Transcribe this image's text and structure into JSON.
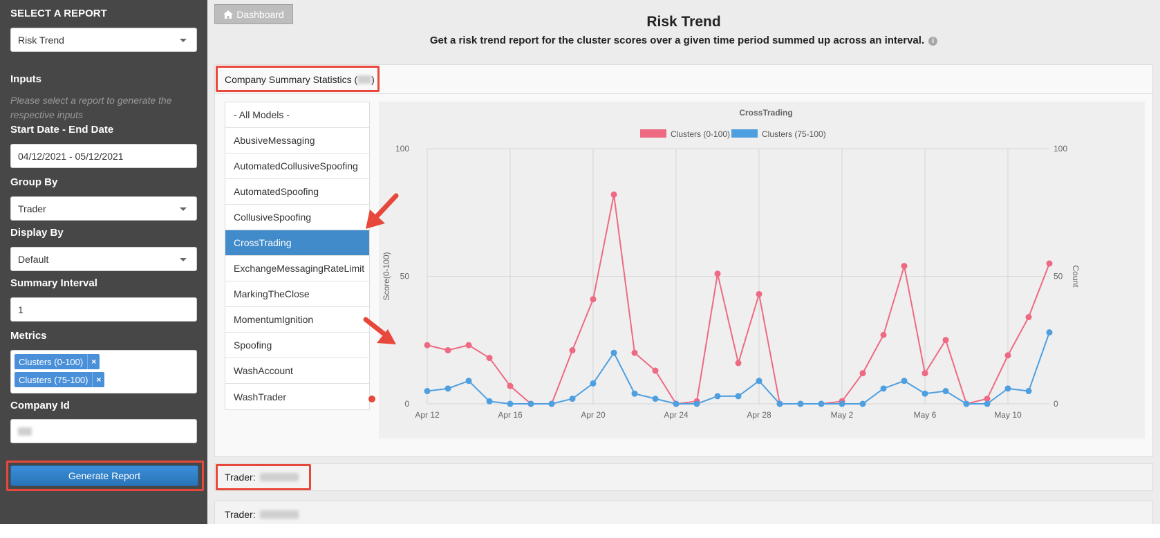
{
  "sidebar": {
    "select_report_label": "SELECT A REPORT",
    "report_value": "Risk Trend",
    "inputs_label": "Inputs",
    "inputs_hint": "Please select a report to generate the respective inputs",
    "date_label": "Start Date - End Date",
    "date_value": "04/12/2021 - 05/12/2021",
    "group_by_label": "Group By",
    "group_by_value": "Trader",
    "display_by_label": "Display By",
    "display_by_value": "Default",
    "summary_interval_label": "Summary Interval",
    "summary_interval_value": "1",
    "metrics_label": "Metrics",
    "metrics": [
      "Clusters (0-100)",
      "Clusters (75-100)"
    ],
    "company_id_label": "Company Id",
    "generate_label": "Generate Report"
  },
  "main": {
    "dashboard_label": "Dashboard",
    "title": "Risk Trend",
    "subtitle": "Get a risk trend report for the cluster scores over a given time period summed up across an interval.",
    "summary_panel_label": "Company Summary Statistics (",
    "summary_panel_close": ")",
    "models": [
      "- All Models -",
      "AbusiveMessaging",
      "AutomatedCollusiveSpoofing",
      "AutomatedSpoofing",
      "CollusiveSpoofing",
      "CrossTrading",
      "ExchangeMessagingRateLimit",
      "MarkingTheClose",
      "MomentumIgnition",
      "Spoofing",
      "WashAccount",
      "WashTrader"
    ],
    "active_model": "CrossTrading",
    "trader_label_1": "Trader:",
    "trader_label_2": "Trader:"
  },
  "colors": {
    "sidebar_bg": "#474747",
    "accent_blue": "#428bca",
    "series_pink": "#ee6a82",
    "series_blue": "#4e9fe0",
    "highlight_red": "#e8483c"
  },
  "chart_data": {
    "type": "line",
    "title": "CrossTrading",
    "ylabel": "Score(0-100)",
    "y2label": "Count",
    "ylim": [
      0,
      100
    ],
    "yticks": [
      0,
      50,
      100
    ],
    "legend_position": "top-center",
    "grid": true,
    "x": [
      "Apr 12",
      "Apr 13",
      "Apr 14",
      "Apr 15",
      "Apr 16",
      "Apr 17",
      "Apr 18",
      "Apr 19",
      "Apr 20",
      "Apr 21",
      "Apr 22",
      "Apr 23",
      "Apr 24",
      "Apr 25",
      "Apr 26",
      "Apr 27",
      "Apr 28",
      "Apr 29",
      "Apr 30",
      "May 1",
      "May 2",
      "May 3",
      "May 4",
      "May 5",
      "May 6",
      "May 7",
      "May 8",
      "May 9",
      "May 10",
      "May 11",
      "May 12"
    ],
    "xtick_labels": [
      "Apr 12",
      "Apr 16",
      "Apr 20",
      "Apr 24",
      "Apr 28",
      "May 2",
      "May 6",
      "May 10"
    ],
    "xtick_indices": [
      0,
      4,
      8,
      12,
      16,
      20,
      24,
      28
    ],
    "series": [
      {
        "name": "Clusters (0-100)",
        "color": "#ee6a82",
        "values": [
          23,
          21,
          23,
          18,
          7,
          0,
          0,
          21,
          41,
          82,
          20,
          13,
          0,
          1,
          51,
          16,
          43,
          0,
          0,
          0,
          1,
          12,
          27,
          54,
          12,
          25,
          0,
          2,
          19,
          34,
          55
        ]
      },
      {
        "name": "Clusters (75-100)",
        "color": "#4e9fe0",
        "values": [
          5,
          6,
          9,
          1,
          0,
          0,
          0,
          2,
          8,
          20,
          4,
          2,
          0,
          0,
          3,
          3,
          9,
          0,
          0,
          0,
          0,
          0,
          6,
          9,
          4,
          5,
          0,
          0,
          6,
          5,
          28
        ]
      }
    ]
  }
}
